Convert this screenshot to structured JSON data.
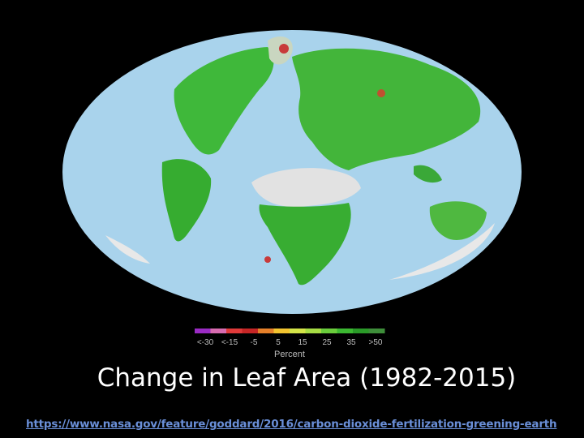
{
  "map": {
    "legend": {
      "colors": [
        "#9a2bc4",
        "#d86cb0",
        "#e03a3a",
        "#c62626",
        "#e6802a",
        "#f2c430",
        "#d4e448",
        "#a6dc44",
        "#6acc3c",
        "#3cb832",
        "#2a9a28",
        "#3e8e3a"
      ],
      "labels": [
        "<-30",
        "<-15",
        "-5",
        "5",
        "15",
        "25",
        "35",
        ">50"
      ],
      "title": "Percent"
    }
  },
  "title": "Change in Leaf Area (1982-2015)",
  "link": "https://www.nasa.gov/feature/goddard/2016/carbon-dioxide-fertilization-greening-earth"
}
